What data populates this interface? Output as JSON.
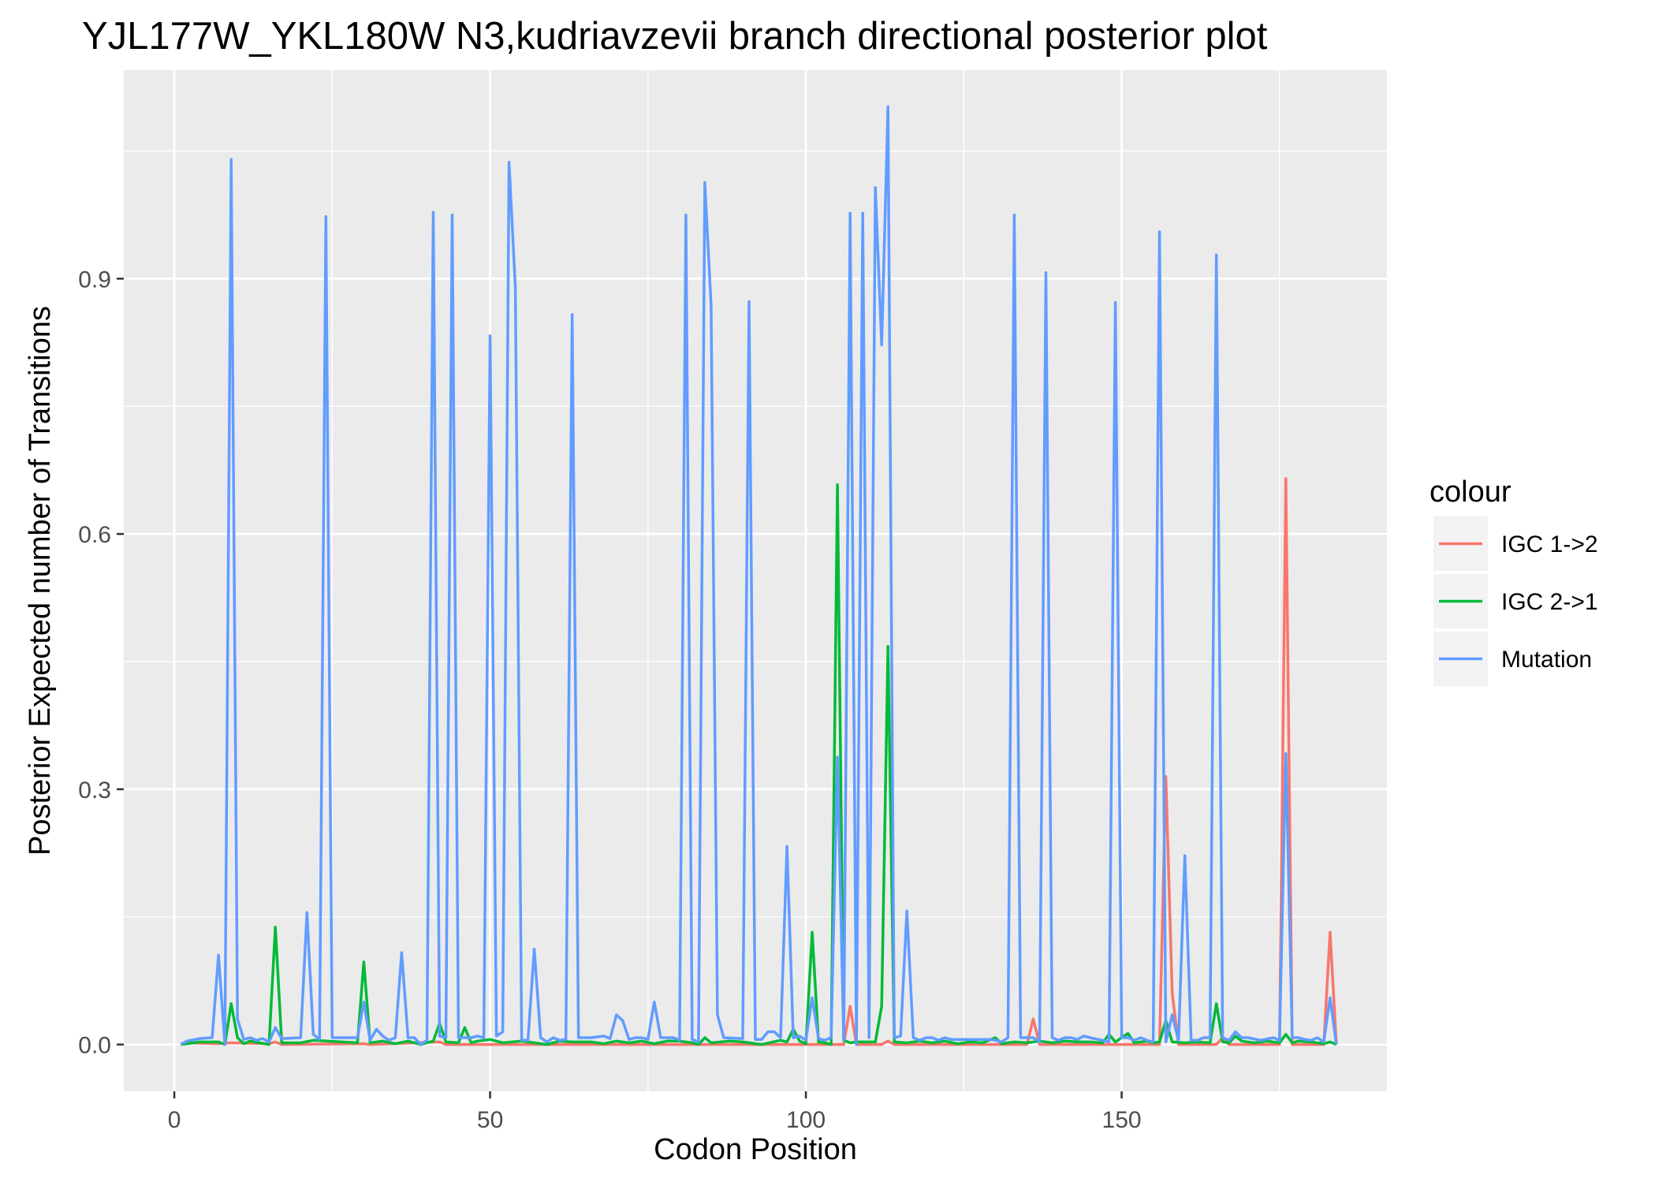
{
  "chart_data": {
    "type": "line",
    "title": "YJL177W_YKL180W N3,kudriavzevii branch directional posterior plot",
    "xlabel": "Codon Position",
    "ylabel": "Posterior Expected number of Transitions",
    "xlim": [
      -8,
      192
    ],
    "ylim": [
      -0.055,
      1.145
    ],
    "xticks": [
      0,
      50,
      100,
      150
    ],
    "xtick_labels": [
      "0",
      "50",
      "100",
      "150"
    ],
    "yticks": [
      0.0,
      0.3,
      0.6,
      0.9
    ],
    "ytick_labels": [
      "0.0",
      "0.3",
      "0.6",
      "0.9"
    ],
    "grid": true,
    "legend": {
      "title": "colour",
      "position": "right"
    },
    "series": [
      {
        "name": "IGC 1->2",
        "color": "#F8766D",
        "points": [
          [
            1,
            0.0
          ],
          [
            2,
            0.002
          ],
          [
            7,
            0.001
          ],
          [
            9,
            0.002
          ],
          [
            15,
            0.001
          ],
          [
            16,
            0.003
          ],
          [
            17,
            0.0
          ],
          [
            30,
            0.001
          ],
          [
            31,
            0.0
          ],
          [
            42,
            0.003
          ],
          [
            43,
            0.0
          ],
          [
            106,
            0.0
          ],
          [
            107,
            0.045
          ],
          [
            108,
            0.0
          ],
          [
            112,
            0.0
          ],
          [
            113,
            0.004
          ],
          [
            114,
            0.0
          ],
          [
            135,
            0.0
          ],
          [
            136,
            0.03
          ],
          [
            137,
            0.0
          ],
          [
            156,
            0.0
          ],
          [
            157,
            0.315
          ],
          [
            158,
            0.06
          ],
          [
            159,
            0.0
          ],
          [
            165,
            0.0
          ],
          [
            166,
            0.008
          ],
          [
            167,
            0.0
          ],
          [
            175,
            0.0
          ],
          [
            176,
            0.665
          ],
          [
            177,
            0.0
          ],
          [
            182,
            0.0
          ],
          [
            183,
            0.132
          ],
          [
            184,
            0.0
          ]
        ]
      },
      {
        "name": "IGC 2->1",
        "color": "#00BA38",
        "points": [
          [
            1,
            0.0
          ],
          [
            2,
            0.001
          ],
          [
            4,
            0.003
          ],
          [
            7,
            0.003
          ],
          [
            8,
            0.0
          ],
          [
            9,
            0.048
          ],
          [
            10,
            0.008
          ],
          [
            11,
            0.001
          ],
          [
            12,
            0.004
          ],
          [
            15,
            0.0
          ],
          [
            16,
            0.138
          ],
          [
            17,
            0.002
          ],
          [
            20,
            0.002
          ],
          [
            22,
            0.005
          ],
          [
            29,
            0.002
          ],
          [
            30,
            0.097
          ],
          [
            31,
            0.002
          ],
          [
            33,
            0.004
          ],
          [
            35,
            0.001
          ],
          [
            37,
            0.004
          ],
          [
            39,
            0.0
          ],
          [
            41,
            0.004
          ],
          [
            42,
            0.025
          ],
          [
            43,
            0.003
          ],
          [
            45,
            0.002
          ],
          [
            46,
            0.02
          ],
          [
            47,
            0.002
          ],
          [
            48,
            0.004
          ],
          [
            50,
            0.006
          ],
          [
            52,
            0.002
          ],
          [
            55,
            0.004
          ],
          [
            57,
            0.002
          ],
          [
            59,
            0.0
          ],
          [
            61,
            0.004
          ],
          [
            63,
            0.003
          ],
          [
            66,
            0.003
          ],
          [
            68,
            0.001
          ],
          [
            70,
            0.004
          ],
          [
            72,
            0.002
          ],
          [
            74,
            0.004
          ],
          [
            76,
            0.001
          ],
          [
            78,
            0.004
          ],
          [
            80,
            0.004
          ],
          [
            82,
            0.002
          ],
          [
            83,
            0.0
          ],
          [
            84,
            0.008
          ],
          [
            85,
            0.002
          ],
          [
            88,
            0.004
          ],
          [
            90,
            0.003
          ],
          [
            93,
            0.0
          ],
          [
            96,
            0.005
          ],
          [
            97,
            0.003
          ],
          [
            98,
            0.018
          ],
          [
            99,
            0.004
          ],
          [
            100,
            0.001
          ],
          [
            101,
            0.132
          ],
          [
            102,
            0.003
          ],
          [
            103,
            0.002
          ],
          [
            104,
            0.0
          ],
          [
            105,
            0.658
          ],
          [
            106,
            0.005
          ],
          [
            107,
            0.002
          ],
          [
            108,
            0.003
          ],
          [
            111,
            0.003
          ],
          [
            112,
            0.045
          ],
          [
            113,
            0.468
          ],
          [
            114,
            0.003
          ],
          [
            116,
            0.002
          ],
          [
            118,
            0.004
          ],
          [
            120,
            0.002
          ],
          [
            122,
            0.004
          ],
          [
            124,
            0.001
          ],
          [
            126,
            0.003
          ],
          [
            128,
            0.002
          ],
          [
            130,
            0.008
          ],
          [
            131,
            0.001
          ],
          [
            133,
            0.003
          ],
          [
            135,
            0.002
          ],
          [
            137,
            0.004
          ],
          [
            139,
            0.002
          ],
          [
            141,
            0.004
          ],
          [
            143,
            0.003
          ],
          [
            145,
            0.003
          ],
          [
            147,
            0.002
          ],
          [
            148,
            0.012
          ],
          [
            149,
            0.003
          ],
          [
            151,
            0.013
          ],
          [
            152,
            0.002
          ],
          [
            154,
            0.004
          ],
          [
            155,
            0.002
          ],
          [
            156,
            0.003
          ],
          [
            157,
            0.028
          ],
          [
            158,
            0.003
          ],
          [
            160,
            0.002
          ],
          [
            162,
            0.003
          ],
          [
            164,
            0.002
          ],
          [
            165,
            0.048
          ],
          [
            166,
            0.003
          ],
          [
            167,
            0.002
          ],
          [
            168,
            0.01
          ],
          [
            169,
            0.004
          ],
          [
            171,
            0.002
          ],
          [
            173,
            0.004
          ],
          [
            175,
            0.002
          ],
          [
            176,
            0.012
          ],
          [
            177,
            0.002
          ],
          [
            178,
            0.004
          ],
          [
            180,
            0.003
          ],
          [
            182,
            0.001
          ],
          [
            183,
            0.003
          ],
          [
            184,
            0.0
          ]
        ]
      },
      {
        "name": "Mutation",
        "color": "#619CFF",
        "points": [
          [
            1,
            0.0
          ],
          [
            2,
            0.004
          ],
          [
            4,
            0.007
          ],
          [
            6,
            0.008
          ],
          [
            7,
            0.105
          ],
          [
            8,
            0.0
          ],
          [
            9,
            1.04
          ],
          [
            10,
            0.03
          ],
          [
            11,
            0.006
          ],
          [
            12,
            0.008
          ],
          [
            13,
            0.005
          ],
          [
            14,
            0.007
          ],
          [
            15,
            0.003
          ],
          [
            16,
            0.02
          ],
          [
            17,
            0.007
          ],
          [
            20,
            0.008
          ],
          [
            21,
            0.155
          ],
          [
            22,
            0.012
          ],
          [
            23,
            0.006
          ],
          [
            24,
            0.973
          ],
          [
            25,
            0.008
          ],
          [
            29,
            0.008
          ],
          [
            30,
            0.05
          ],
          [
            31,
            0.005
          ],
          [
            32,
            0.018
          ],
          [
            33,
            0.01
          ],
          [
            34,
            0.005
          ],
          [
            35,
            0.008
          ],
          [
            36,
            0.108
          ],
          [
            37,
            0.008
          ],
          [
            38,
            0.008
          ],
          [
            39,
            0.0
          ],
          [
            40,
            0.005
          ],
          [
            41,
            0.978
          ],
          [
            42,
            0.01
          ],
          [
            43,
            0.008
          ],
          [
            44,
            0.975
          ],
          [
            45,
            0.008
          ],
          [
            47,
            0.008
          ],
          [
            48,
            0.01
          ],
          [
            49,
            0.008
          ],
          [
            50,
            0.833
          ],
          [
            51,
            0.01
          ],
          [
            52,
            0.015
          ],
          [
            53,
            1.037
          ],
          [
            54,
            0.89
          ],
          [
            55,
            0.005
          ],
          [
            56,
            0.005
          ],
          [
            57,
            0.112
          ],
          [
            58,
            0.008
          ],
          [
            59,
            0.003
          ],
          [
            60,
            0.008
          ],
          [
            61,
            0.005
          ],
          [
            62,
            0.006
          ],
          [
            63,
            0.858
          ],
          [
            64,
            0.008
          ],
          [
            66,
            0.008
          ],
          [
            68,
            0.01
          ],
          [
            69,
            0.007
          ],
          [
            70,
            0.035
          ],
          [
            71,
            0.028
          ],
          [
            72,
            0.006
          ],
          [
            73,
            0.008
          ],
          [
            74,
            0.008
          ],
          [
            75,
            0.006
          ],
          [
            76,
            0.05
          ],
          [
            77,
            0.008
          ],
          [
            79,
            0.008
          ],
          [
            80,
            0.005
          ],
          [
            81,
            0.975
          ],
          [
            82,
            0.006
          ],
          [
            83,
            0.003
          ],
          [
            84,
            1.013
          ],
          [
            85,
            0.868
          ],
          [
            86,
            0.035
          ],
          [
            87,
            0.008
          ],
          [
            90,
            0.007
          ],
          [
            91,
            0.873
          ],
          [
            92,
            0.006
          ],
          [
            93,
            0.006
          ],
          [
            94,
            0.015
          ],
          [
            95,
            0.015
          ],
          [
            96,
            0.008
          ],
          [
            97,
            0.233
          ],
          [
            98,
            0.008
          ],
          [
            99,
            0.01
          ],
          [
            100,
            0.005
          ],
          [
            101,
            0.055
          ],
          [
            102,
            0.007
          ],
          [
            103,
            0.005
          ],
          [
            104,
            0.008
          ],
          [
            105,
            0.338
          ],
          [
            106,
            0.005
          ],
          [
            107,
            0.977
          ],
          [
            108,
            0.0
          ],
          [
            109,
            0.977
          ],
          [
            110,
            0.008
          ],
          [
            111,
            1.007
          ],
          [
            112,
            0.822
          ],
          [
            113,
            1.102
          ],
          [
            114,
            0.008
          ],
          [
            115,
            0.01
          ],
          [
            116,
            0.157
          ],
          [
            117,
            0.008
          ],
          [
            118,
            0.005
          ],
          [
            119,
            0.008
          ],
          [
            120,
            0.008
          ],
          [
            121,
            0.005
          ],
          [
            122,
            0.008
          ],
          [
            123,
            0.006
          ],
          [
            125,
            0.006
          ],
          [
            127,
            0.006
          ],
          [
            129,
            0.006
          ],
          [
            130,
            0.005
          ],
          [
            131,
            0.003
          ],
          [
            132,
            0.008
          ],
          [
            133,
            0.975
          ],
          [
            134,
            0.008
          ],
          [
            136,
            0.008
          ],
          [
            137,
            0.003
          ],
          [
            138,
            0.907
          ],
          [
            139,
            0.008
          ],
          [
            140,
            0.005
          ],
          [
            141,
            0.008
          ],
          [
            142,
            0.008
          ],
          [
            143,
            0.006
          ],
          [
            144,
            0.01
          ],
          [
            145,
            0.008
          ],
          [
            147,
            0.005
          ],
          [
            148,
            0.003
          ],
          [
            149,
            0.872
          ],
          [
            150,
            0.008
          ],
          [
            151,
            0.008
          ],
          [
            152,
            0.005
          ],
          [
            153,
            0.008
          ],
          [
            154,
            0.005
          ],
          [
            155,
            0.003
          ],
          [
            156,
            0.955
          ],
          [
            157,
            0.003
          ],
          [
            158,
            0.035
          ],
          [
            159,
            0.005
          ],
          [
            160,
            0.222
          ],
          [
            161,
            0.005
          ],
          [
            162,
            0.005
          ],
          [
            163,
            0.008
          ],
          [
            164,
            0.008
          ],
          [
            165,
            0.928
          ],
          [
            166,
            0.008
          ],
          [
            167,
            0.005
          ],
          [
            168,
            0.015
          ],
          [
            169,
            0.008
          ],
          [
            170,
            0.008
          ],
          [
            172,
            0.005
          ],
          [
            174,
            0.008
          ],
          [
            175,
            0.005
          ],
          [
            176,
            0.342
          ],
          [
            177,
            0.008
          ],
          [
            178,
            0.008
          ],
          [
            179,
            0.006
          ],
          [
            180,
            0.005
          ],
          [
            181,
            0.008
          ],
          [
            182,
            0.003
          ],
          [
            183,
            0.055
          ],
          [
            184,
            0.0
          ]
        ]
      }
    ]
  }
}
